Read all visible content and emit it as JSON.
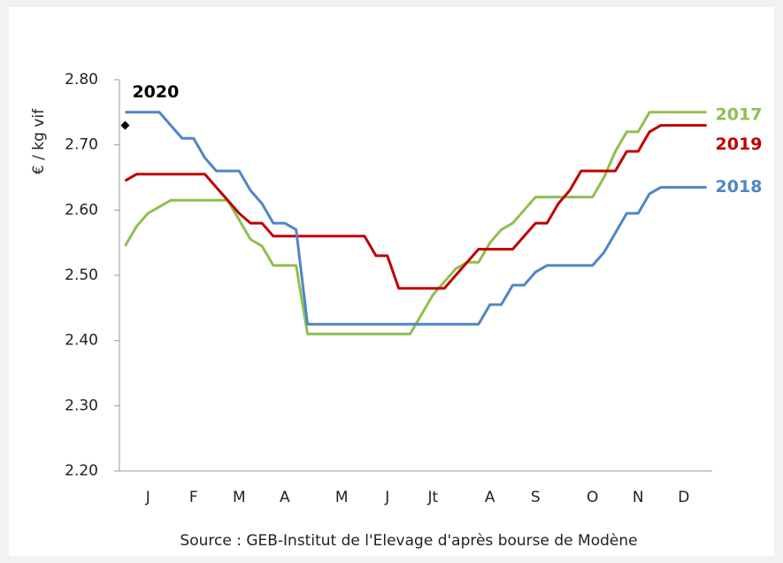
{
  "chart_data": {
    "type": "line",
    "y_label": "€ / kg vif",
    "source": "Source : GEB-Institut de l'Elevage d'après bourse de Modène",
    "categories": [
      null,
      null,
      "J",
      null,
      null,
      null,
      "F",
      null,
      null,
      null,
      "M",
      null,
      null,
      null,
      "A",
      null,
      null,
      null,
      null,
      "M",
      null,
      null,
      null,
      "J",
      null,
      null,
      null,
      "Jt",
      null,
      null,
      null,
      null,
      "A",
      null,
      null,
      null,
      "S",
      null,
      null,
      null,
      null,
      "O",
      null,
      null,
      null,
      "N",
      null,
      null,
      null,
      "D",
      null,
      null
    ],
    "ylim": [
      2.2,
      2.8
    ],
    "yticks": [
      {
        "value": 2.2,
        "label": "2.20"
      },
      {
        "value": 2.3,
        "label": "2.30"
      },
      {
        "value": 2.4,
        "label": "2.40"
      },
      {
        "value": 2.5,
        "label": "2.50"
      },
      {
        "value": 2.6,
        "label": "2.60"
      },
      {
        "value": 2.7,
        "label": "2.70"
      },
      {
        "value": 2.8,
        "label": "2.80"
      }
    ],
    "series": [
      {
        "name": "2017",
        "color": "#8fbf50",
        "style": "line",
        "values": [
          2.545,
          2.575,
          2.595,
          2.605,
          2.615,
          2.615,
          2.615,
          2.615,
          2.615,
          2.615,
          2.585,
          2.555,
          2.545,
          2.515,
          2.515,
          2.515,
          2.41,
          2.41,
          2.41,
          2.41,
          2.41,
          2.41,
          2.41,
          2.41,
          2.41,
          2.41,
          2.44,
          2.47,
          2.49,
          2.51,
          2.52,
          2.52,
          2.55,
          2.57,
          2.58,
          2.6,
          2.62,
          2.62,
          2.62,
          2.62,
          2.62,
          2.62,
          2.65,
          2.69,
          2.72,
          2.72,
          2.75,
          2.75,
          2.75,
          2.75,
          2.75,
          2.75
        ]
      },
      {
        "name": "2019",
        "color": "#c00000",
        "style": "line",
        "values": [
          2.645,
          2.655,
          2.655,
          2.655,
          2.655,
          2.655,
          2.655,
          2.655,
          2.635,
          2.615,
          2.595,
          2.58,
          2.58,
          2.56,
          2.56,
          2.56,
          2.56,
          2.56,
          2.56,
          2.56,
          2.56,
          2.56,
          2.53,
          2.53,
          2.48,
          2.48,
          2.48,
          2.48,
          2.48,
          2.5,
          2.52,
          2.54,
          2.54,
          2.54,
          2.54,
          2.56,
          2.58,
          2.58,
          2.61,
          2.63,
          2.66,
          2.66,
          2.66,
          2.66,
          2.69,
          2.69,
          2.72,
          2.73,
          2.73,
          2.73,
          2.73,
          2.73
        ]
      },
      {
        "name": "2018",
        "color": "#4f86c6",
        "style": "line",
        "values": [
          2.75,
          2.75,
          2.75,
          2.75,
          2.73,
          2.71,
          2.71,
          2.68,
          2.66,
          2.66,
          2.66,
          2.63,
          2.61,
          2.58,
          2.58,
          2.57,
          2.425,
          2.425,
          2.425,
          2.425,
          2.425,
          2.425,
          2.425,
          2.425,
          2.425,
          2.425,
          2.425,
          2.425,
          2.425,
          2.425,
          2.425,
          2.425,
          2.455,
          2.455,
          2.485,
          2.485,
          2.505,
          2.515,
          2.515,
          2.515,
          2.515,
          2.515,
          2.535,
          2.565,
          2.595,
          2.595,
          2.625,
          2.635,
          2.635,
          2.635,
          2.635,
          2.635
        ]
      },
      {
        "name": "2020",
        "color": "#000000",
        "style": "marker",
        "values": [
          2.73,
          null,
          null,
          null,
          null,
          null,
          null,
          null,
          null,
          null,
          null,
          null,
          null,
          null,
          null,
          null,
          null,
          null,
          null,
          null,
          null,
          null,
          null,
          null,
          null,
          null,
          null,
          null,
          null,
          null,
          null,
          null,
          null,
          null,
          null,
          null,
          null,
          null,
          null,
          null,
          null,
          null,
          null,
          null,
          null,
          null,
          null,
          null,
          null,
          null,
          null,
          null
        ]
      }
    ]
  }
}
